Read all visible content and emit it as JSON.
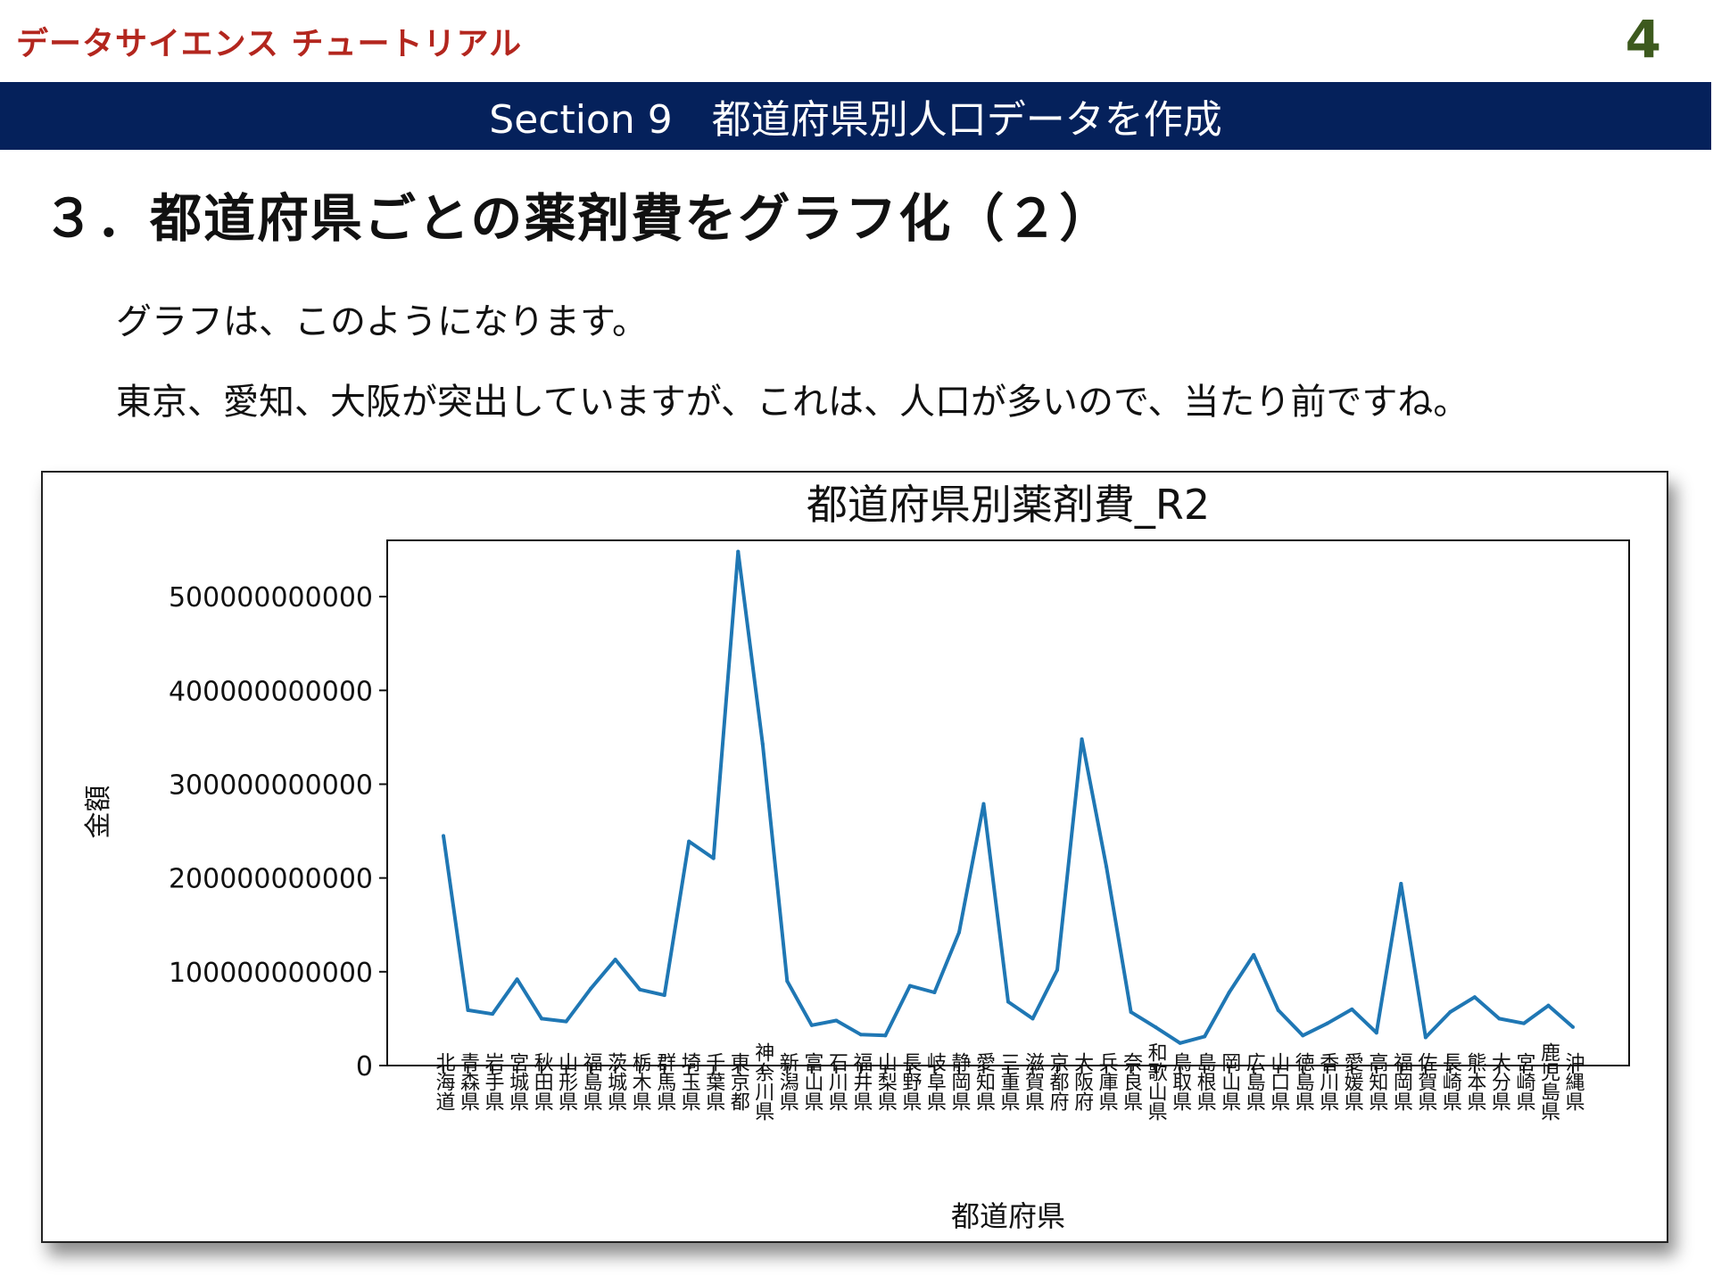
{
  "header": {
    "brand": "データサイエンス チュートリアル",
    "page_number": "4"
  },
  "section": {
    "title": "Section  9　都道府県別人口データを作成"
  },
  "heading": "３．都道府県ごとの薬剤費をグラフ化（２）",
  "paragraphs": [
    "グラフは、このようになります。",
    "東京、愛知、大阪が突出していますが、これは、人口が多いので、当たり前ですね。"
  ],
  "chart_data": {
    "type": "line",
    "title": "都道府県別薬剤費_R2",
    "xlabel": "都道府県",
    "ylabel": "金額",
    "ylim": [
      0,
      560000000000
    ],
    "yticks": [
      0,
      100000000000,
      200000000000,
      300000000000,
      400000000000,
      500000000000
    ],
    "ytick_labels": [
      "0",
      "100000000000",
      "200000000000",
      "300000000000",
      "400000000000",
      "500000000000"
    ],
    "color": "#1f77b4",
    "grid": false,
    "categories": [
      "北海道",
      "青森県",
      "岩手県",
      "宮城県",
      "秋田県",
      "山形県",
      "福島県",
      "茨城県",
      "栃木県",
      "群馬県",
      "埼玉県",
      "千葉県",
      "東京都",
      "神奈川県",
      "新潟県",
      "富山県",
      "石川県",
      "福井県",
      "山梨県",
      "長野県",
      "岐阜県",
      "静岡県",
      "愛知県",
      "三重県",
      "滋賀県",
      "京都府",
      "大阪府",
      "兵庫県",
      "奈良県",
      "和歌山県",
      "鳥取県",
      "島根県",
      "岡山県",
      "広島県",
      "山口県",
      "徳島県",
      "香川県",
      "愛媛県",
      "高知県",
      "福岡県",
      "佐賀県",
      "長崎県",
      "熊本県",
      "大分県",
      "宮崎県",
      "鹿児島県",
      "沖縄県"
    ],
    "values": [
      245000000000,
      59000000000,
      55000000000,
      92000000000,
      50000000000,
      47000000000,
      82000000000,
      113000000000,
      81000000000,
      75000000000,
      239000000000,
      221000000000,
      548000000000,
      343000000000,
      90000000000,
      43000000000,
      48000000000,
      33000000000,
      32000000000,
      85000000000,
      78000000000,
      142000000000,
      279000000000,
      68000000000,
      50000000000,
      102000000000,
      348000000000,
      212000000000,
      57000000000,
      41000000000,
      24000000000,
      31000000000,
      78000000000,
      118000000000,
      59000000000,
      32000000000,
      45000000000,
      60000000000,
      35000000000,
      194000000000,
      30000000000,
      57000000000,
      73000000000,
      50000000000,
      45000000000,
      64000000000,
      41000000000
    ]
  }
}
